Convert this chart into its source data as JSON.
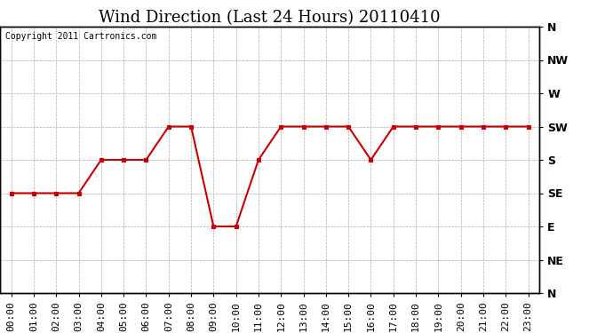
{
  "title": "Wind Direction (Last 24 Hours) 20110410",
  "copyright": "Copyright 2011 Cartronics.com",
  "x_labels": [
    "00:00",
    "01:00",
    "02:00",
    "03:00",
    "04:00",
    "05:00",
    "06:00",
    "07:00",
    "08:00",
    "09:00",
    "10:00",
    "11:00",
    "12:00",
    "13:00",
    "14:00",
    "15:00",
    "16:00",
    "17:00",
    "18:00",
    "19:00",
    "20:00",
    "21:00",
    "22:00",
    "23:00"
  ],
  "y_labels": [
    "N",
    "NW",
    "W",
    "SW",
    "S",
    "SE",
    "E",
    "NE",
    "N"
  ],
  "y_values": [
    360,
    315,
    270,
    225,
    180,
    135,
    90,
    45,
    0
  ],
  "wind_data": [
    135,
    135,
    135,
    135,
    180,
    180,
    180,
    225,
    225,
    90,
    90,
    180,
    225,
    225,
    225,
    225,
    180,
    225,
    225,
    225,
    225,
    225,
    225,
    225
  ],
  "line_color": "#cc0000",
  "marker": "s",
  "marker_size": 3,
  "background_color": "#ffffff",
  "grid_color": "#aaaaaa",
  "title_fontsize": 13,
  "label_fontsize": 9,
  "copyright_fontsize": 7
}
